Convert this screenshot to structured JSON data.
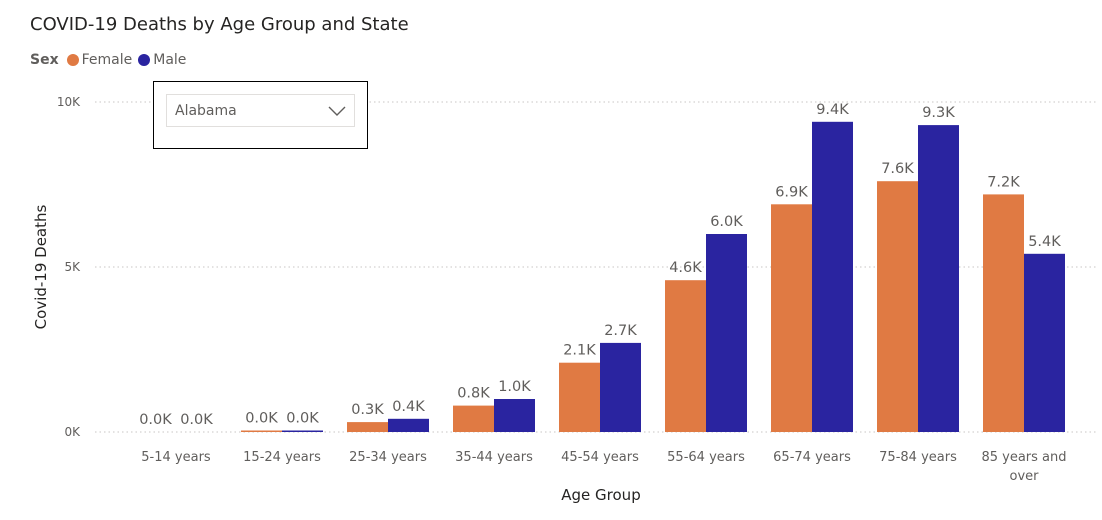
{
  "title": "COVID-19 Deaths by Age Group and State",
  "legend": {
    "title": "Sex"
  },
  "slicer": {
    "selected": "Alabama"
  },
  "colors": {
    "Female": "#e07a43",
    "Male": "#2a24a0",
    "grid": "#c8c6c4"
  },
  "chart_data": {
    "type": "bar",
    "title": "COVID-19 Deaths by Age Group and State",
    "xlabel": "Age Group",
    "ylabel": "Covid-19 Deaths",
    "ylim": [
      0,
      10000
    ],
    "yticks": [
      {
        "value": 0,
        "label": "0K"
      },
      {
        "value": 5000,
        "label": "5K"
      },
      {
        "value": 10000,
        "label": "10K"
      }
    ],
    "categories": [
      "5-14 years",
      "15-24 years",
      "25-34 years",
      "35-44 years",
      "45-54 years",
      "55-64 years",
      "65-74 years",
      "75-84 years",
      "85 years and over"
    ],
    "series": [
      {
        "name": "Female",
        "values": [
          0,
          30,
          300,
          800,
          2100,
          4600,
          6900,
          7600,
          7200
        ],
        "labels": [
          "0.0K",
          "0.0K",
          "0.3K",
          "0.8K",
          "2.1K",
          "4.6K",
          "6.9K",
          "7.6K",
          "7.2K"
        ]
      },
      {
        "name": "Male",
        "values": [
          0,
          40,
          400,
          1000,
          2700,
          6000,
          9400,
          9300,
          5400
        ],
        "labels": [
          "0.0K",
          "0.0K",
          "0.4K",
          "1.0K",
          "2.7K",
          "6.0K",
          "9.4K",
          "9.3K",
          "5.4K"
        ]
      }
    ],
    "grid": true,
    "legend_position": "top-left"
  }
}
